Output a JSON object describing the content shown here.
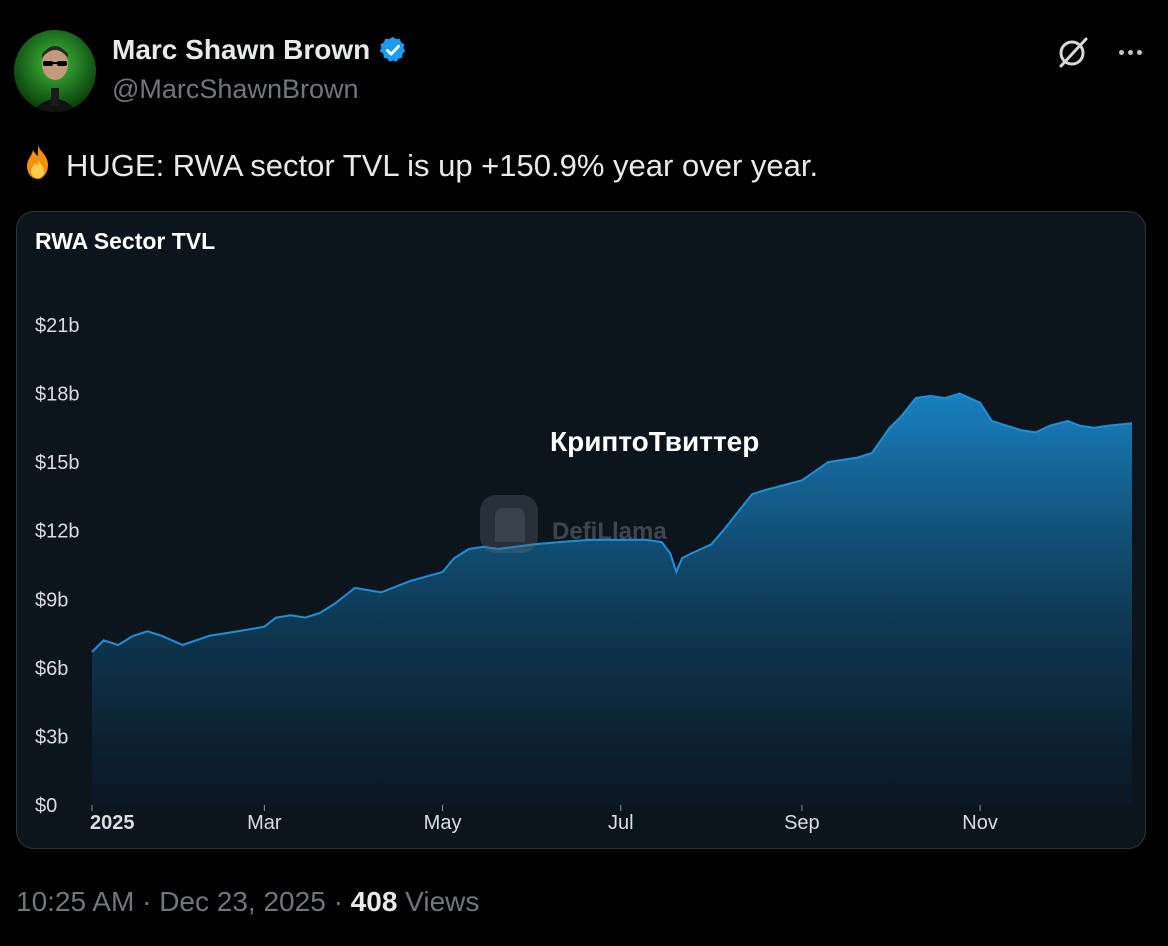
{
  "author": {
    "name": "Marc Shawn Brown",
    "handle": "@MarcShawnBrown",
    "verified_color": "#1d9bf0"
  },
  "tweet": {
    "emoji": "🔥",
    "text": "HUGE: RWA sector TVL is up +150.9% year over year."
  },
  "chart_data": {
    "type": "area",
    "title": "RWA Sector TVL",
    "watermark": "DefiLlama",
    "overlay_text": "КриптоТвиттер",
    "y_ticks": [
      "$0",
      "$3b",
      "$6b",
      "$9b",
      "$12b",
      "$15b",
      "$18b",
      "$21b"
    ],
    "x_ticks": [
      "2025",
      "Mar",
      "May",
      "Jul",
      "Sep",
      "Nov"
    ],
    "ylim": [
      0,
      21
    ],
    "y_unit": "billion USD",
    "series": [
      {
        "x": [
          "2025-01-01",
          "2025-01-05",
          "2025-01-10",
          "2025-01-15",
          "2025-01-20",
          "2025-01-25",
          "2025-02-01",
          "2025-02-10",
          "2025-02-20",
          "2025-03-01",
          "2025-03-05",
          "2025-03-10",
          "2025-03-15",
          "2025-03-20",
          "2025-03-25",
          "2025-04-01",
          "2025-04-10",
          "2025-04-20",
          "2025-05-01",
          "2025-05-05",
          "2025-05-10",
          "2025-05-15",
          "2025-05-20",
          "2025-06-01",
          "2025-06-10",
          "2025-06-20",
          "2025-07-01",
          "2025-07-10",
          "2025-07-15",
          "2025-07-18",
          "2025-07-20",
          "2025-07-22",
          "2025-07-25",
          "2025-08-01",
          "2025-08-05",
          "2025-08-10",
          "2025-08-15",
          "2025-08-20",
          "2025-09-01",
          "2025-09-10",
          "2025-09-20",
          "2025-09-25",
          "2025-10-01",
          "2025-10-05",
          "2025-10-10",
          "2025-10-15",
          "2025-10-20",
          "2025-10-25",
          "2025-11-01",
          "2025-11-05",
          "2025-11-10",
          "2025-11-15",
          "2025-11-20",
          "2025-11-25",
          "2025-12-01",
          "2025-12-05",
          "2025-12-10",
          "2025-12-15",
          "2025-12-23"
        ],
        "values": [
          6.7,
          7.2,
          7.0,
          7.4,
          7.6,
          7.4,
          7.0,
          7.4,
          7.6,
          7.8,
          8.2,
          8.3,
          8.2,
          8.4,
          8.8,
          9.5,
          9.3,
          9.8,
          10.2,
          10.8,
          11.2,
          11.3,
          11.2,
          11.4,
          11.5,
          11.6,
          11.6,
          11.6,
          11.5,
          11.0,
          10.2,
          10.8,
          11.0,
          11.4,
          12.0,
          12.8,
          13.6,
          13.8,
          14.2,
          15.0,
          15.2,
          15.4,
          16.5,
          17.0,
          17.8,
          17.9,
          17.8,
          18.0,
          17.6,
          16.8,
          16.6,
          16.4,
          16.3,
          16.6,
          16.8,
          16.6,
          16.5,
          16.6,
          16.7
        ],
        "color": "#1f8fd6"
      }
    ]
  },
  "footer": {
    "time": "10:25 AM",
    "sep1": "·",
    "date": "Dec 23, 2025",
    "sep2": "·",
    "views_count": "408",
    "views_label": "Views"
  }
}
